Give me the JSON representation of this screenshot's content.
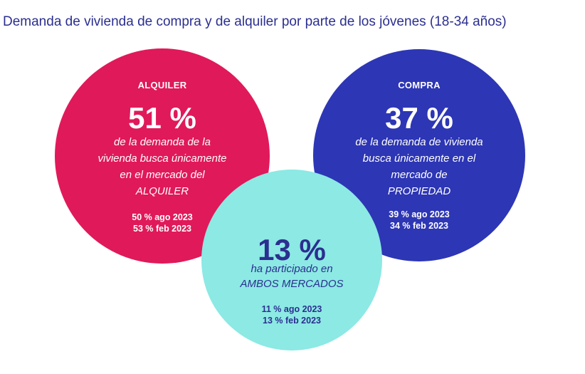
{
  "title": "Demanda de vivienda de compra y de alquiler por parte de los jóvenes (18-34 años)",
  "colors": {
    "rent": "#e0195a",
    "buy": "#2d36b4",
    "both": "#8ce9e4",
    "title": "#2b2f8f"
  },
  "rent": {
    "label": "ALQUILER",
    "percent": "51 %",
    "desc_lines": [
      "de la demanda de la",
      "vivienda busca únicamente",
      "en el mercado del",
      "ALQUILER"
    ],
    "history": [
      "50 % ago 2023",
      "53 % feb 2023"
    ]
  },
  "buy": {
    "label": "COMPRA",
    "percent": "37 %",
    "desc_lines": [
      "de la demanda de vivienda",
      "busca únicamente en el",
      "mercado de",
      "PROPIEDAD"
    ],
    "history": [
      "39 % ago 2023",
      "34 % feb 2023"
    ]
  },
  "both": {
    "percent": "13 %",
    "desc_lines": [
      "ha participado en",
      "AMBOS MERCADOS"
    ],
    "history": [
      "11 % ago 2023",
      "13 % feb 2023"
    ]
  }
}
